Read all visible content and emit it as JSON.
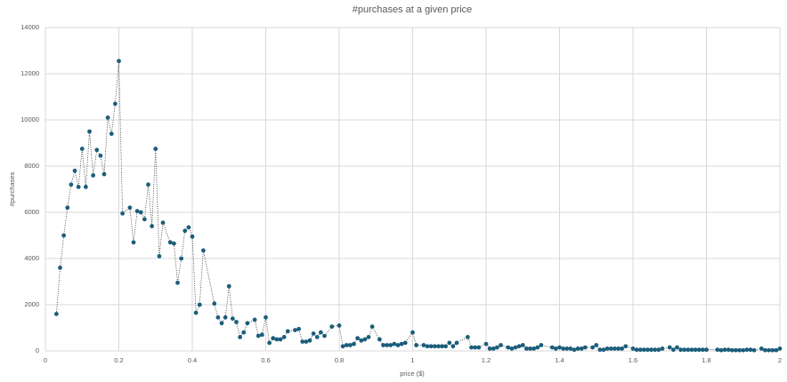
{
  "chart_data": {
    "type": "scatter",
    "title": "#purchases at a given price",
    "xlabel": "price ($)",
    "ylabel": "#purchases",
    "xlim": [
      0,
      2
    ],
    "xticks": [
      0,
      0.2,
      0.4,
      0.6,
      0.8,
      1,
      1.2,
      1.4,
      1.6,
      1.8,
      2
    ],
    "ylim": [
      0,
      14000
    ],
    "yticks": [
      0,
      2000,
      4000,
      6000,
      8000,
      10000,
      12000,
      14000
    ],
    "grid": true,
    "color": "#1b5e7a",
    "line_color": "#333333",
    "x": [
      0.03,
      0.04,
      0.05,
      0.06,
      0.07,
      0.08,
      0.09,
      0.1,
      0.11,
      0.12,
      0.13,
      0.14,
      0.15,
      0.16,
      0.17,
      0.18,
      0.19,
      0.2,
      0.21,
      0.23,
      0.24,
      0.25,
      0.26,
      0.27,
      0.28,
      0.29,
      0.3,
      0.31,
      0.32,
      0.34,
      0.35,
      0.36,
      0.37,
      0.38,
      0.39,
      0.4,
      0.41,
      0.42,
      0.43,
      0.46,
      0.47,
      0.48,
      0.49,
      0.5,
      0.51,
      0.52,
      0.53,
      0.54,
      0.55,
      0.57,
      0.58,
      0.59,
      0.6,
      0.61,
      0.62,
      0.63,
      0.64,
      0.65,
      0.66,
      0.68,
      0.69,
      0.7,
      0.71,
      0.72,
      0.73,
      0.74,
      0.75,
      0.76,
      0.78,
      0.8,
      0.81,
      0.82,
      0.83,
      0.84,
      0.85,
      0.86,
      0.87,
      0.88,
      0.89,
      0.91,
      0.92,
      0.93,
      0.94,
      0.95,
      0.96,
      0.97,
      0.98,
      1.0,
      1.01,
      1.03,
      1.04,
      1.05,
      1.06,
      1.07,
      1.08,
      1.09,
      1.1,
      1.11,
      1.12,
      1.15,
      1.16,
      1.17,
      1.18,
      1.2,
      1.21,
      1.22,
      1.23,
      1.24,
      1.26,
      1.27,
      1.28,
      1.29,
      1.3,
      1.31,
      1.32,
      1.33,
      1.34,
      1.35,
      1.38,
      1.39,
      1.4,
      1.41,
      1.42,
      1.43,
      1.44,
      1.45,
      1.46,
      1.47,
      1.49,
      1.5,
      1.51,
      1.52,
      1.53,
      1.54,
      1.55,
      1.56,
      1.57,
      1.58,
      1.6,
      1.61,
      1.62,
      1.63,
      1.64,
      1.65,
      1.66,
      1.67,
      1.68,
      1.7,
      1.71,
      1.72,
      1.73,
      1.74,
      1.75,
      1.76,
      1.77,
      1.78,
      1.79,
      1.8,
      1.83,
      1.84,
      1.85,
      1.86,
      1.87,
      1.88,
      1.89,
      1.9,
      1.91,
      1.92,
      1.93,
      1.95,
      1.96,
      1.97,
      1.98,
      1.99,
      2.0
    ],
    "values": [
      1600,
      3600,
      5000,
      6200,
      7200,
      7800,
      7100,
      8750,
      7100,
      9500,
      7600,
      8700,
      8450,
      7650,
      10100,
      9400,
      10700,
      12550,
      5950,
      6200,
      4700,
      6050,
      6000,
      5700,
      7200,
      5400,
      8750,
      4100,
      5550,
      4700,
      4650,
      2950,
      4000,
      5200,
      5350,
      4950,
      1650,
      2000,
      4350,
      2050,
      1450,
      1200,
      1450,
      2800,
      1400,
      1250,
      600,
      800,
      1200,
      1350,
      650,
      700,
      1450,
      350,
      550,
      500,
      500,
      600,
      850,
      900,
      950,
      400,
      400,
      450,
      750,
      600,
      800,
      650,
      1050,
      1100,
      200,
      250,
      250,
      300,
      550,
      450,
      500,
      600,
      1050,
      500,
      250,
      250,
      250,
      300,
      250,
      300,
      350,
      800,
      250,
      250,
      200,
      200,
      200,
      200,
      200,
      200,
      350,
      200,
      350,
      600,
      150,
      150,
      150,
      300,
      100,
      100,
      150,
      250,
      150,
      100,
      150,
      200,
      250,
      100,
      100,
      100,
      150,
      250,
      150,
      100,
      150,
      100,
      100,
      100,
      50,
      100,
      100,
      150,
      150,
      250,
      50,
      50,
      100,
      100,
      100,
      100,
      100,
      200,
      100,
      50,
      50,
      50,
      50,
      50,
      50,
      50,
      100,
      150,
      50,
      150,
      50,
      50,
      50,
      50,
      50,
      50,
      50,
      50,
      50,
      30,
      50,
      50,
      30,
      30,
      30,
      30,
      50,
      50,
      30,
      100,
      30,
      30,
      30,
      30,
      100
    ]
  }
}
